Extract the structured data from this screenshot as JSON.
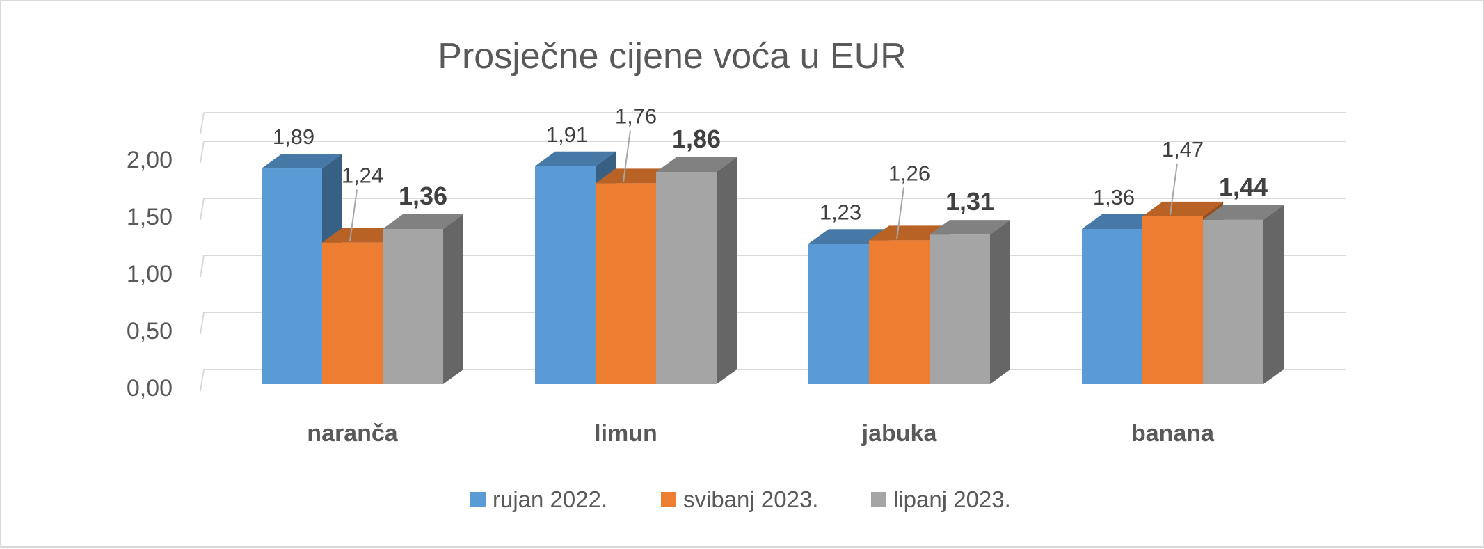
{
  "chart_data": {
    "type": "bar",
    "title": "Prosječne cijene voća u EUR",
    "categories": [
      "naranča",
      "limun",
      "jabuka",
      "banana"
    ],
    "series": [
      {
        "name": "rujan 2022.",
        "values": [
          1.89,
          1.91,
          1.23,
          1.36
        ],
        "labels": [
          "1,89",
          "1,91",
          "1,23",
          "1,36"
        ],
        "color": "#5b9bd5",
        "bold_labels": false
      },
      {
        "name": "svibanj 2023.",
        "values": [
          1.24,
          1.76,
          1.26,
          1.47
        ],
        "labels": [
          "1,24",
          "1,76",
          "1,26",
          "1,47"
        ],
        "color": "#ed7d31",
        "bold_labels": false
      },
      {
        "name": "lipanj 2023.",
        "values": [
          1.36,
          1.86,
          1.31,
          1.44
        ],
        "labels": [
          "1,36",
          "1,86",
          "1,31",
          "1,44"
        ],
        "color": "#a5a5a5",
        "bold_labels": true
      }
    ],
    "y_ticks": [
      "0,00",
      "0,50",
      "1,00",
      "1,50",
      "2,00"
    ],
    "ylim": [
      0,
      2.25
    ],
    "grid": true,
    "three_d": true,
    "legend_position": "bottom"
  }
}
